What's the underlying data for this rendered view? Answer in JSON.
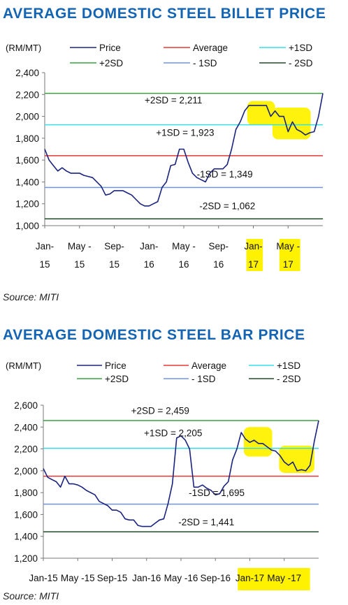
{
  "colors": {
    "title": "#1464b4",
    "price": "#1a237e",
    "average": "#e53935",
    "sd_plus1": "#33e0e8",
    "sd_plus2": "#3aa040",
    "sd_minus1": "#6f93e6",
    "sd_minus2": "#1f4d2a",
    "highlight": "#fff200"
  },
  "chart_data": [
    {
      "type": "line",
      "title": "AVERAGE DOMESTIC STEEL BILLET PRICE",
      "unit_label": "(RM/MT)",
      "source": "Source: MITI",
      "ylim": [
        1000,
        2400
      ],
      "yticks": [
        "1,000",
        "1,200",
        "1,400",
        "1,600",
        "1,800",
        "2,000",
        "2,200",
        "2,400"
      ],
      "ytick_values": [
        1000,
        1200,
        1400,
        1600,
        1800,
        2000,
        2200,
        2400
      ],
      "xlim": [
        0,
        32
      ],
      "xticks": [
        {
          "x": 0,
          "line1": "Jan-",
          "line2": "15",
          "highlight": false
        },
        {
          "x": 4,
          "line1": "May -",
          "line2": "15",
          "highlight": false
        },
        {
          "x": 8,
          "line1": "Sep-",
          "line2": "15",
          "highlight": false
        },
        {
          "x": 12,
          "line1": "Jan-",
          "line2": "16",
          "highlight": false
        },
        {
          "x": 16,
          "line1": "May -",
          "line2": "16",
          "highlight": false
        },
        {
          "x": 20,
          "line1": "Sep-",
          "line2": "16",
          "highlight": false
        },
        {
          "x": 24,
          "line1": "Jan-",
          "line2": "17",
          "highlight": true
        },
        {
          "x": 28,
          "line1": "May -",
          "line2": "17",
          "highlight": true
        }
      ],
      "legend": [
        {
          "name": "Price",
          "key": "price"
        },
        {
          "name": "Average",
          "key": "average"
        },
        {
          "name": "+1SD",
          "key": "sd_plus1"
        },
        {
          "name": "+2SD",
          "key": "sd_plus2"
        },
        {
          "name": "- 1SD",
          "key": "sd_minus1"
        },
        {
          "name": "- 2SD",
          "key": "sd_minus2"
        }
      ],
      "reference_lines": [
        {
          "key": "sd_plus2",
          "value": 2211,
          "label": "+2SD = 2,211",
          "label_x": 11.5,
          "label_y": 2120
        },
        {
          "key": "sd_plus1",
          "value": 1923,
          "label": "+1SD = 1,923",
          "label_x": 12.8,
          "label_y": 1820
        },
        {
          "key": "average",
          "value": 1640,
          "label": "",
          "label_x": 0,
          "label_y": 0
        },
        {
          "key": "sd_minus1",
          "value": 1349,
          "label": "-1SD = 1,349",
          "label_x": 17.5,
          "label_y": 1440
        },
        {
          "key": "sd_minus2",
          "value": 1062,
          "label": "-2SD = 1,062",
          "label_x": 17.8,
          "label_y": 1150
        }
      ],
      "series": [
        {
          "key": "price",
          "x": [
            0,
            0.5,
            1,
            1.5,
            2,
            2.5,
            3,
            3.5,
            4,
            4.5,
            5,
            5.5,
            6,
            6.5,
            7,
            7.5,
            8,
            8.5,
            9,
            9.5,
            10,
            10.5,
            11,
            11.5,
            12,
            12.5,
            13,
            13.5,
            14,
            14.5,
            15,
            15.5,
            16,
            16.5,
            17,
            17.5,
            18,
            18.5,
            19,
            19.5,
            20,
            20.5,
            21,
            21.5,
            22,
            22.5,
            23,
            23.5,
            24,
            24.5,
            25,
            25.5,
            26,
            26.5,
            27,
            27.5,
            28,
            28.5,
            29,
            29.5,
            30,
            30.5,
            31,
            31.5,
            32
          ],
          "values": [
            1700,
            1600,
            1550,
            1500,
            1530,
            1500,
            1480,
            1480,
            1480,
            1460,
            1450,
            1440,
            1400,
            1360,
            1280,
            1290,
            1320,
            1320,
            1320,
            1300,
            1280,
            1240,
            1200,
            1180,
            1180,
            1200,
            1220,
            1350,
            1400,
            1550,
            1560,
            1700,
            1700,
            1580,
            1480,
            1440,
            1420,
            1400,
            1480,
            1520,
            1520,
            1520,
            1560,
            1700,
            1880,
            1950,
            2050,
            2100,
            2100,
            2100,
            2100,
            2100,
            2000,
            2050,
            2000,
            2000,
            1860,
            1950,
            1880,
            1860,
            1830,
            1850,
            1860,
            2000,
            2211
          ]
        }
      ],
      "highlights": [
        {
          "x0": 23.3,
          "x1": 26.5,
          "y0": 1920,
          "y1": 2140
        },
        {
          "x0": 26.2,
          "x1": 30.6,
          "y0": 1790,
          "y1": 2080
        }
      ],
      "xtick_highlights": [
        {
          "x0": 23.2,
          "x1": 25.1
        },
        {
          "x0": 27.0,
          "x1": 29.4
        }
      ]
    },
    {
      "type": "line",
      "title": "AVERAGE DOMESTIC STEEL BAR PRICE",
      "unit_label": "(RM/MT)",
      "source": "Source: MITI",
      "ylim": [
        1200,
        2600
      ],
      "yticks": [
        "1,200",
        "1,400",
        "1,600",
        "1,800",
        "2,000",
        "2,200",
        "2,400",
        "2,600"
      ],
      "ytick_values": [
        1200,
        1400,
        1600,
        1800,
        2000,
        2200,
        2400,
        2600
      ],
      "xlim": [
        0,
        32
      ],
      "xticks": [
        {
          "x": 0,
          "line1": "Jan-15",
          "line2": "",
          "highlight": false
        },
        {
          "x": 4,
          "line1": "May -15",
          "line2": "",
          "highlight": false
        },
        {
          "x": 8,
          "line1": "Sep-15",
          "line2": "",
          "highlight": false
        },
        {
          "x": 12,
          "line1": "Jan-16",
          "line2": "",
          "highlight": false
        },
        {
          "x": 16,
          "line1": "May -16",
          "line2": "",
          "highlight": false
        },
        {
          "x": 20,
          "line1": "Sep-16",
          "line2": "",
          "highlight": false
        },
        {
          "x": 24,
          "line1": "Jan-17",
          "line2": "",
          "highlight": true
        },
        {
          "x": 28,
          "line1": "May -17",
          "line2": "",
          "highlight": true
        }
      ],
      "legend": [
        {
          "name": "Price",
          "key": "price"
        },
        {
          "name": "Average",
          "key": "average"
        },
        {
          "name": "+1SD",
          "key": "sd_plus1"
        },
        {
          "name": "+2SD",
          "key": "sd_plus2"
        },
        {
          "name": "- 1SD",
          "key": "sd_minus1"
        },
        {
          "name": "- 2SD",
          "key": "sd_minus2"
        }
      ],
      "reference_lines": [
        {
          "key": "sd_plus2",
          "value": 2459,
          "label": "+2SD = 2,459",
          "label_x": 10.2,
          "label_y": 2520
        },
        {
          "key": "sd_plus1",
          "value": 2205,
          "label": "+1SD = 2,205",
          "label_x": 11.7,
          "label_y": 2315
        },
        {
          "key": "average",
          "value": 1950,
          "label": "",
          "label_x": 0,
          "label_y": 0
        },
        {
          "key": "sd_minus1",
          "value": 1695,
          "label": "-1SD = 1,695",
          "label_x": 16.9,
          "label_y": 1770
        },
        {
          "key": "sd_minus2",
          "value": 1441,
          "label": "-2SD = 1,441",
          "label_x": 15.7,
          "label_y": 1500
        }
      ],
      "series": [
        {
          "key": "price",
          "x": [
            0,
            0.5,
            1,
            1.5,
            2,
            2.5,
            3,
            3.5,
            4,
            4.5,
            5,
            5.5,
            6,
            6.5,
            7,
            7.5,
            8,
            8.5,
            9,
            9.5,
            10,
            10.5,
            11,
            11.5,
            12,
            12.5,
            13,
            13.5,
            14,
            14.5,
            15,
            15.5,
            16,
            16.5,
            17,
            17.5,
            18,
            18.5,
            19,
            19.5,
            20,
            20.5,
            21,
            21.5,
            22,
            22.5,
            23,
            23.5,
            24,
            24.5,
            25,
            25.5,
            26,
            26.5,
            27,
            27.5,
            28,
            28.5,
            29,
            29.5,
            30,
            30.5,
            31,
            31.5,
            32
          ],
          "values": [
            2020,
            1940,
            1920,
            1900,
            1850,
            1950,
            1880,
            1880,
            1870,
            1850,
            1820,
            1800,
            1780,
            1720,
            1700,
            1680,
            1640,
            1640,
            1620,
            1560,
            1550,
            1550,
            1500,
            1490,
            1490,
            1490,
            1520,
            1550,
            1560,
            1700,
            1880,
            2300,
            2320,
            2280,
            2200,
            1850,
            1850,
            1870,
            1840,
            1820,
            1780,
            1790,
            1860,
            1900,
            2100,
            2200,
            2350,
            2290,
            2260,
            2280,
            2250,
            2250,
            2220,
            2190,
            2180,
            2140,
            2080,
            2050,
            2080,
            2000,
            2010,
            2000,
            2050,
            2270,
            2459
          ]
        }
      ],
      "highlights": [
        {
          "x0": 23.3,
          "x1": 26.6,
          "y0": 2130,
          "y1": 2400
        },
        {
          "x0": 27.4,
          "x1": 31.5,
          "y0": 1980,
          "y1": 2230
        }
      ],
      "xtick_highlights": [
        {
          "x0": 22.6,
          "x1": 31.0
        }
      ]
    }
  ]
}
